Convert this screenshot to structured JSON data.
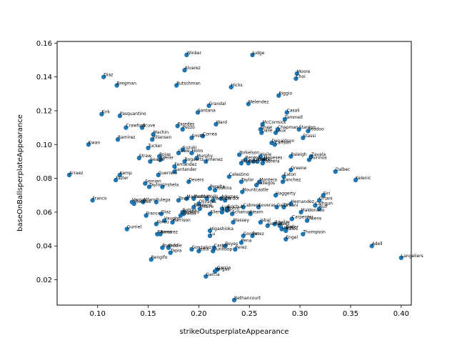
{
  "chart_data": {
    "type": "scatter",
    "title": "",
    "xlabel": "strikeOutsperplateAppearance",
    "ylabel": "baseOnBallsperplateAppearance",
    "xlim": [
      0.06,
      0.41
    ],
    "ylim": [
      0.005,
      0.161
    ],
    "xticks": [
      0.1,
      0.15,
      0.2,
      0.25,
      0.3,
      0.35,
      0.4
    ],
    "yticks": [
      0.02,
      0.04,
      0.06,
      0.08,
      0.1,
      0.12,
      0.14,
      0.16
    ],
    "xtick_labels": [
      "0.10",
      "0.15",
      "0.20",
      "0.25",
      "0.30",
      "0.35",
      "0.40"
    ],
    "ytick_labels": [
      "0.02",
      "0.04",
      "0.06",
      "0.08",
      "0.10",
      "0.12",
      "0.14",
      "0.16"
    ],
    "grid": false,
    "marker_color": "#1f77b4",
    "points": [
      {
        "label": "Winker",
        "x": 0.188,
        "y": 0.153
      },
      {
        "label": "Judge",
        "x": 0.253,
        "y": 0.153
      },
      {
        "label": "Alvarez",
        "x": 0.186,
        "y": 0.144
      },
      {
        "label": "Moore",
        "x": 0.297,
        "y": 0.142
      },
      {
        "label": "Choi",
        "x": 0.296,
        "y": 0.139
      },
      {
        "label": "Diaz",
        "x": 0.106,
        "y": 0.14
      },
      {
        "label": "Bregman",
        "x": 0.119,
        "y": 0.135
      },
      {
        "label": "Rutschman",
        "x": 0.178,
        "y": 0.135
      },
      {
        "label": "Hicks",
        "x": 0.232,
        "y": 0.134
      },
      {
        "label": "Riggio",
        "x": 0.279,
        "y": 0.129
      },
      {
        "label": "Grandal",
        "x": 0.21,
        "y": 0.123
      },
      {
        "label": "Melendez",
        "x": 0.249,
        "y": 0.124
      },
      {
        "label": "Santana",
        "x": 0.199,
        "y": 0.119
      },
      {
        "label": "Casali",
        "x": 0.287,
        "y": 0.119
      },
      {
        "label": "Kirk",
        "x": 0.104,
        "y": 0.118
      },
      {
        "label": "Pasquantino",
        "x": 0.122,
        "y": 0.117
      },
      {
        "label": "Tammell",
        "x": 0.285,
        "y": 0.115
      },
      {
        "label": "McCormick",
        "x": 0.263,
        "y": 0.112
      },
      {
        "label": "Ward",
        "x": 0.217,
        "y": 0.112
      },
      {
        "label": "Paredes",
        "x": 0.179,
        "y": 0.111
      },
      {
        "label": "Crawford",
        "x": 0.128,
        "y": 0.11
      },
      {
        "label": "Acuve",
        "x": 0.144,
        "y": 0.11
      },
      {
        "label": "Pezzo",
        "x": 0.184,
        "y": 0.109
      },
      {
        "label": "Shaw",
        "x": 0.261,
        "y": 0.109
      },
      {
        "label": "Chapman",
        "x": 0.278,
        "y": 0.109
      },
      {
        "label": "Stanton",
        "x": 0.299,
        "y": 0.109
      },
      {
        "label": "Seadoo",
        "x": 0.308,
        "y": 0.108
      },
      {
        "label": "Dalle",
        "x": 0.262,
        "y": 0.107
      },
      {
        "label": "Laux",
        "x": 0.276,
        "y": 0.107
      },
      {
        "label": "Machin",
        "x": 0.155,
        "y": 0.106
      },
      {
        "label": "Correa",
        "x": 0.204,
        "y": 0.105
      },
      {
        "label": "Stassi",
        "x": 0.303,
        "y": 0.104
      },
      {
        "label": "Ramirez",
        "x": 0.12,
        "y": 0.103
      },
      {
        "label": "Villansen",
        "x": 0.154,
        "y": 0.103
      },
      {
        "label": "Smith",
        "x": 0.193,
        "y": 0.104
      },
      {
        "label": "Donaldson",
        "x": 0.272,
        "y": 0.101
      },
      {
        "label": "Carlson",
        "x": 0.275,
        "y": 0.1
      },
      {
        "label": "Kwan",
        "x": 0.091,
        "y": 0.1
      },
      {
        "label": "Tucker",
        "x": 0.15,
        "y": 0.098
      },
      {
        "label": "Suzuki",
        "x": 0.184,
        "y": 0.097
      },
      {
        "label": "Lowe",
        "x": 0.18,
        "y": 0.095
      },
      {
        "label": "Holm",
        "x": 0.193,
        "y": 0.095
      },
      {
        "label": "Torkelson",
        "x": 0.24,
        "y": 0.094
      },
      {
        "label": "Raleigh",
        "x": 0.291,
        "y": 0.093
      },
      {
        "label": "Zavala",
        "x": 0.311,
        "y": 0.093
      },
      {
        "label": "Haile",
        "x": 0.261,
        "y": 0.093
      },
      {
        "label": "Rojas",
        "x": 0.161,
        "y": 0.093
      },
      {
        "label": "Straw",
        "x": 0.141,
        "y": 0.092
      },
      {
        "label": "Murphy",
        "x": 0.198,
        "y": 0.092
      },
      {
        "label": "Keeler",
        "x": 0.162,
        "y": 0.091
      },
      {
        "label": "Meneses",
        "x": 0.264,
        "y": 0.091
      },
      {
        "label": "Quirinos",
        "x": 0.309,
        "y": 0.091
      },
      {
        "label": "Benton",
        "x": 0.246,
        "y": 0.091
      },
      {
        "label": "Cronet",
        "x": 0.254,
        "y": 0.09
      },
      {
        "label": "Walker",
        "x": 0.258,
        "y": 0.09
      },
      {
        "label": "Seager",
        "x": 0.152,
        "y": 0.09
      },
      {
        "label": "Bogaerts",
        "x": 0.186,
        "y": 0.09
      },
      {
        "label": "Jimenez",
        "x": 0.207,
        "y": 0.09
      },
      {
        "label": "Martin",
        "x": 0.242,
        "y": 0.089
      },
      {
        "label": "Cabrera",
        "x": 0.263,
        "y": 0.089
      },
      {
        "label": "Ruiz",
        "x": 0.249,
        "y": 0.089
      },
      {
        "label": "Fernandez",
        "x": 0.176,
        "y": 0.087
      },
      {
        "label": "Greene",
        "x": 0.291,
        "y": 0.085
      },
      {
        "label": "Santander",
        "x": 0.176,
        "y": 0.084
      },
      {
        "label": "Dalbec",
        "x": 0.335,
        "y": 0.084
      },
      {
        "label": "Arraez",
        "x": 0.072,
        "y": 0.082
      },
      {
        "label": "Kemp",
        "x": 0.122,
        "y": 0.082
      },
      {
        "label": "Guerrero",
        "x": 0.16,
        "y": 0.082
      },
      {
        "label": "Celestino",
        "x": 0.23,
        "y": 0.081
      },
      {
        "label": "Eaton",
        "x": 0.284,
        "y": 0.081
      },
      {
        "label": "Fazler",
        "x": 0.118,
        "y": 0.079
      },
      {
        "label": "Kelenic",
        "x": 0.355,
        "y": 0.079
      },
      {
        "label": "Taylor",
        "x": 0.242,
        "y": 0.078
      },
      {
        "label": "Montero",
        "x": 0.26,
        "y": 0.078
      },
      {
        "label": "Sanchez",
        "x": 0.283,
        "y": 0.078
      },
      {
        "label": "Devers",
        "x": 0.19,
        "y": 0.078
      },
      {
        "label": "Semien",
        "x": 0.147,
        "y": 0.077
      },
      {
        "label": "Gallegos",
        "x": 0.257,
        "y": 0.076
      },
      {
        "label": "Taylor",
        "x": 0.151,
        "y": 0.075
      },
      {
        "label": "Urshela",
        "x": 0.164,
        "y": 0.075
      },
      {
        "label": "Peralta",
        "x": 0.211,
        "y": 0.074
      },
      {
        "label": "Hoskins",
        "x": 0.216,
        "y": 0.073
      },
      {
        "label": "Mountcastle",
        "x": 0.243,
        "y": 0.072
      },
      {
        "label": "Haggerty",
        "x": 0.276,
        "y": 0.07
      },
      {
        "label": "Siri",
        "x": 0.323,
        "y": 0.07
      },
      {
        "label": "Franco",
        "x": 0.095,
        "y": 0.067
      },
      {
        "label": "Adames",
        "x": 0.222,
        "y": 0.068
      },
      {
        "label": "Machado",
        "x": 0.188,
        "y": 0.068
      },
      {
        "label": "Nadder",
        "x": 0.195,
        "y": 0.068
      },
      {
        "label": "Walls",
        "x": 0.208,
        "y": 0.068
      },
      {
        "label": "Tovar",
        "x": 0.18,
        "y": 0.067
      },
      {
        "label": "Swander",
        "x": 0.214,
        "y": 0.067
      },
      {
        "label": "Cordor",
        "x": 0.226,
        "y": 0.067
      },
      {
        "label": "Ortani",
        "x": 0.319,
        "y": 0.067
      },
      {
        "label": "Vargas",
        "x": 0.134,
        "y": 0.066
      },
      {
        "label": "Morales",
        "x": 0.136,
        "y": 0.065
      },
      {
        "label": "Alfaro",
        "x": 0.145,
        "y": 0.066
      },
      {
        "label": "Fulega",
        "x": 0.158,
        "y": 0.066
      },
      {
        "label": "Olivares",
        "x": 0.2,
        "y": 0.065
      },
      {
        "label": "Hernandez",
        "x": 0.291,
        "y": 0.065
      },
      {
        "label": "Calhoun",
        "x": 0.315,
        "y": 0.064
      },
      {
        "label": "Cabrera",
        "x": 0.244,
        "y": 0.063
      },
      {
        "label": "Soveras",
        "x": 0.259,
        "y": 0.063
      },
      {
        "label": "Gallo",
        "x": 0.277,
        "y": 0.063
      },
      {
        "label": "Ohtani",
        "x": 0.284,
        "y": 0.063
      },
      {
        "label": "Rowland",
        "x": 0.195,
        "y": 0.063
      },
      {
        "label": "Hilaire",
        "x": 0.201,
        "y": 0.062
      },
      {
        "label": "Ruff",
        "x": 0.319,
        "y": 0.062
      },
      {
        "label": "Lux",
        "x": 0.223,
        "y": 0.062
      },
      {
        "label": "Grichuk",
        "x": 0.228,
        "y": 0.062
      },
      {
        "label": "Bohm",
        "x": 0.228,
        "y": 0.061
      },
      {
        "label": "Maldonado",
        "x": 0.301,
        "y": 0.06
      },
      {
        "label": "Robles",
        "x": 0.184,
        "y": 0.06
      },
      {
        "label": "Rosario",
        "x": 0.185,
        "y": 0.059
      },
      {
        "label": "Allen",
        "x": 0.211,
        "y": 0.059
      },
      {
        "label": "Rice",
        "x": 0.223,
        "y": 0.06
      },
      {
        "label": "Hearn",
        "x": 0.251,
        "y": 0.059
      },
      {
        "label": "Schanuel",
        "x": 0.233,
        "y": 0.059
      },
      {
        "label": "Villalba",
        "x": 0.182,
        "y": 0.058
      },
      {
        "label": "France",
        "x": 0.148,
        "y": 0.058
      },
      {
        "label": "Diaz",
        "x": 0.163,
        "y": 0.059
      },
      {
        "label": "Carpenter",
        "x": 0.292,
        "y": 0.056
      },
      {
        "label": "Owens",
        "x": 0.307,
        "y": 0.055
      },
      {
        "label": "Massey",
        "x": 0.234,
        "y": 0.054
      },
      {
        "label": "Vaughn",
        "x": 0.166,
        "y": 0.055
      },
      {
        "label": "Harrison",
        "x": 0.174,
        "y": 0.054
      },
      {
        "label": "Abreu",
        "x": 0.158,
        "y": 0.053
      },
      {
        "label": "Isbal",
        "x": 0.261,
        "y": 0.054
      },
      {
        "label": "Aguilar",
        "x": 0.275,
        "y": 0.053
      },
      {
        "label": "Gomes",
        "x": 0.268,
        "y": 0.052
      },
      {
        "label": "Paez",
        "x": 0.28,
        "y": 0.052
      },
      {
        "label": "Gurriel",
        "x": 0.129,
        "y": 0.05
      },
      {
        "label": "Higashioka",
        "x": 0.211,
        "y": 0.049
      },
      {
        "label": "Thompson",
        "x": 0.303,
        "y": 0.047
      },
      {
        "label": "Luvall",
        "x": 0.282,
        "y": 0.05
      },
      {
        "label": "Hales",
        "x": 0.286,
        "y": 0.049
      },
      {
        "label": "Bauer",
        "x": 0.286,
        "y": 0.05
      },
      {
        "label": "Ramos",
        "x": 0.159,
        "y": 0.047
      },
      {
        "label": "Ramirez",
        "x": 0.162,
        "y": 0.047
      },
      {
        "label": "Gordon",
        "x": 0.244,
        "y": 0.046
      },
      {
        "label": "Perez",
        "x": 0.253,
        "y": 0.046
      },
      {
        "label": "Engel",
        "x": 0.286,
        "y": 0.044
      },
      {
        "label": "Lu",
        "x": 0.211,
        "y": 0.046
      },
      {
        "label": "Pena",
        "x": 0.242,
        "y": 0.042
      },
      {
        "label": "Adell",
        "x": 0.371,
        "y": 0.04
      },
      {
        "label": "Rosario",
        "x": 0.164,
        "y": 0.039
      },
      {
        "label": "Riddle",
        "x": 0.17,
        "y": 0.039
      },
      {
        "label": "Reyes",
        "x": 0.226,
        "y": 0.04
      },
      {
        "label": "Castro",
        "x": 0.215,
        "y": 0.039
      },
      {
        "label": "Perez",
        "x": 0.236,
        "y": 0.038
      },
      {
        "label": "Gonzalez",
        "x": 0.193,
        "y": 0.038
      },
      {
        "label": "Isaia",
        "x": 0.2,
        "y": 0.037
      },
      {
        "label": "Dunhoop",
        "x": 0.214,
        "y": 0.037
      },
      {
        "label": "Tapia",
        "x": 0.172,
        "y": 0.036
      },
      {
        "label": "Langeliers",
        "x": 0.4,
        "y": 0.033
      },
      {
        "label": "Rengifo",
        "x": 0.153,
        "y": 0.032
      },
      {
        "label": "Garcia",
        "x": 0.218,
        "y": 0.026
      },
      {
        "label": "Vargas",
        "x": 0.216,
        "y": 0.025
      },
      {
        "label": "Garcia",
        "x": 0.207,
        "y": 0.022
      },
      {
        "label": "Bethancourt",
        "x": 0.235,
        "y": 0.008
      }
    ]
  }
}
